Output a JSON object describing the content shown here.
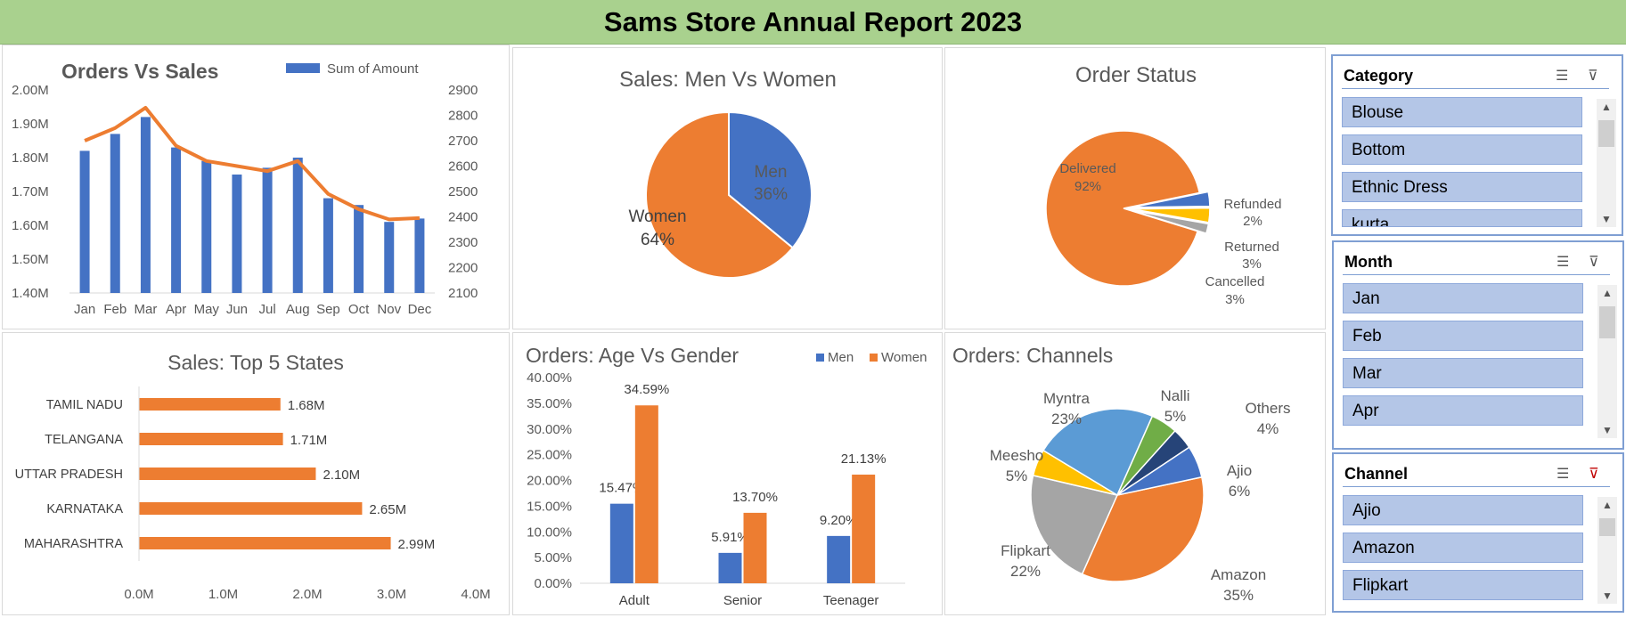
{
  "page": {
    "title": "Sams Store Annual Report 2023"
  },
  "chart_data": [
    {
      "id": "orders-vs-sales",
      "type": "bar",
      "title": "Orders Vs Sales",
      "categories": [
        "Jan",
        "Feb",
        "Mar",
        "Apr",
        "May",
        "Jun",
        "Jul",
        "Aug",
        "Sep",
        "Oct",
        "Nov",
        "Dec"
      ],
      "series": [
        {
          "name": "Sum of Amount",
          "kind": "bar",
          "axis": "left",
          "values": [
            1.82,
            1.87,
            1.92,
            1.83,
            1.79,
            1.75,
            1.77,
            1.8,
            1.68,
            1.66,
            1.61,
            1.62
          ]
        },
        {
          "name": "",
          "kind": "line",
          "axis": "right",
          "values": [
            2700,
            2750,
            2830,
            2680,
            2620,
            2600,
            2580,
            2620,
            2490,
            2430,
            2390,
            2395
          ]
        }
      ],
      "left_axis": {
        "min": 1.4,
        "max": 2.0,
        "ticks": [
          "1.40M",
          "1.50M",
          "1.60M",
          "1.70M",
          "1.80M",
          "1.90M",
          "2.00M"
        ]
      },
      "right_axis": {
        "min": 2100,
        "max": 2900,
        "ticks": [
          "2100",
          "2200",
          "2300",
          "2400",
          "2500",
          "2600",
          "2700",
          "2800",
          "2900"
        ]
      },
      "legend": "top-right",
      "grid": false
    },
    {
      "id": "sales-men-women",
      "type": "pie",
      "title": "Sales: Men Vs Women",
      "slices": [
        {
          "label": "Men",
          "value": 36,
          "text": "36%"
        },
        {
          "label": "Women",
          "value": 64,
          "text": "64%"
        }
      ]
    },
    {
      "id": "order-status",
      "type": "pie",
      "title": "Order Status",
      "slices": [
        {
          "label": "Delivered",
          "value": 92,
          "text": "92%"
        },
        {
          "label": "Cancelled",
          "value": 3,
          "text": "3%"
        },
        {
          "label": "Returned",
          "value": 3,
          "text": "3%"
        },
        {
          "label": "Refunded",
          "value": 2,
          "text": "2%"
        }
      ]
    },
    {
      "id": "top-5-states",
      "type": "bar",
      "orientation": "horizontal",
      "title": "Sales: Top 5 States",
      "categories": [
        "TAMIL NADU",
        "TELANGANA",
        "UTTAR PRADESH",
        "KARNATAKA",
        "MAHARASHTRA"
      ],
      "values": [
        1.68,
        1.71,
        2.1,
        2.65,
        2.99
      ],
      "value_labels": [
        "1.68M",
        "1.71M",
        "2.10M",
        "2.65M",
        "2.99M"
      ],
      "xlim": [
        0,
        4
      ],
      "x_ticks": [
        "0.0M",
        "1.0M",
        "2.0M",
        "3.0M",
        "4.0M"
      ]
    },
    {
      "id": "age-vs-gender",
      "type": "bar",
      "title": "Orders: Age Vs Gender",
      "categories": [
        "Adult",
        "Senior",
        "Teenager"
      ],
      "series": [
        {
          "name": "Men",
          "values": [
            15.47,
            5.91,
            9.2
          ],
          "labels": [
            "15.47%",
            "5.91%",
            "9.20%"
          ]
        },
        {
          "name": "Women",
          "values": [
            34.59,
            13.7,
            21.13
          ],
          "labels": [
            "34.59%",
            "13.70%",
            "21.13%"
          ]
        }
      ],
      "ylim": [
        0,
        40
      ],
      "y_ticks": [
        "0.00%",
        "5.00%",
        "10.00%",
        "15.00%",
        "20.00%",
        "25.00%",
        "30.00%",
        "35.00%",
        "40.00%"
      ],
      "legend": "top-right"
    },
    {
      "id": "channels",
      "type": "pie",
      "title": "Orders: Channels",
      "slices": [
        {
          "label": "Amazon",
          "value": 35,
          "text": "35%"
        },
        {
          "label": "Flipkart",
          "value": 22,
          "text": "22%"
        },
        {
          "label": "Meesho",
          "value": 5,
          "text": "5%"
        },
        {
          "label": "Myntra",
          "value": 23,
          "text": "23%"
        },
        {
          "label": "Nalli",
          "value": 5,
          "text": "5%"
        },
        {
          "label": "Others",
          "value": 4,
          "text": "4%"
        },
        {
          "label": "Ajio",
          "value": 6,
          "text": "6%"
        }
      ]
    }
  ],
  "colors": {
    "blue": "#4472c4",
    "orange": "#ed7d31",
    "gray": "#a5a5a5",
    "yellow": "#ffc000",
    "light_blue": "#5b9bd5",
    "green": "#70ad47",
    "navy": "#264478",
    "header_green": "#a9d18e",
    "slicer_item": "#b4c6e7"
  },
  "slicers": {
    "category": {
      "title": "Category",
      "items": [
        "Blouse",
        "Bottom",
        "Ethnic Dress",
        "kurta"
      ]
    },
    "month": {
      "title": "Month",
      "items": [
        "Jan",
        "Feb",
        "Mar",
        "Apr"
      ]
    },
    "channel": {
      "title": "Channel",
      "items": [
        "Ajio",
        "Amazon",
        "Flipkart"
      ]
    },
    "icons": {
      "multi_select": "multi-select-icon",
      "clear_filter": "clear-filter-icon"
    }
  }
}
